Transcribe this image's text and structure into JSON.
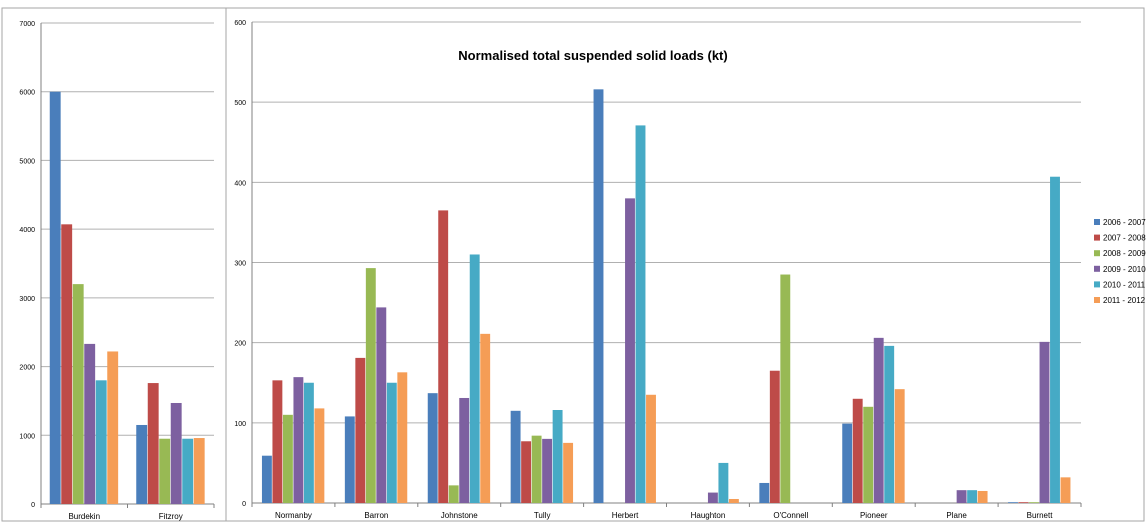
{
  "colors": [
    "#4a7ebb",
    "#be4b48",
    "#98b954",
    "#7d60a0",
    "#46aac5",
    "#f59d56"
  ],
  "chart_data": [
    {
      "type": "bar",
      "title": "",
      "categories": [
        "Burdekin",
        "Fitzroy"
      ],
      "ylim": [
        0,
        7000
      ],
      "yticks": [
        0,
        1000,
        2000,
        3000,
        4000,
        5000,
        6000,
        7000
      ],
      "grid": true,
      "series": [
        {
          "name": "2006 - 2007",
          "values": [
            6000,
            1150
          ]
        },
        {
          "name": "2007 - 2008",
          "values": [
            4070,
            1760
          ]
        },
        {
          "name": "2008 - 2009",
          "values": [
            3200,
            950
          ]
        },
        {
          "name": "2009 - 2010",
          "values": [
            2330,
            1470
          ]
        },
        {
          "name": "2010 - 2011",
          "values": [
            1800,
            950
          ]
        },
        {
          "name": "2011 - 2012",
          "values": [
            2220,
            960
          ]
        }
      ]
    },
    {
      "type": "bar",
      "title": "Normalised total suspended solid loads (kt)",
      "categories": [
        "Normanby",
        "Barron",
        "Johnstone",
        "Tully",
        "Herbert",
        "Haughton",
        "O'Connell",
        "Pioneer",
        "Plane",
        "Burnett"
      ],
      "ylim": [
        0,
        600
      ],
      "yticks": [
        0,
        100,
        200,
        300,
        400,
        500,
        600
      ],
      "grid": true,
      "legend_position": "right",
      "series": [
        {
          "name": "2006 - 2007",
          "values": [
            59,
            108,
            137,
            115,
            516,
            0,
            25,
            99,
            0,
            1
          ]
        },
        {
          "name": "2007 - 2008",
          "values": [
            153,
            181,
            365,
            77,
            0,
            0,
            165,
            130,
            0,
            1
          ]
        },
        {
          "name": "2008 - 2009",
          "values": [
            110,
            293,
            22,
            84,
            0,
            0,
            285,
            120,
            0,
            1
          ]
        },
        {
          "name": "2009 - 2010",
          "values": [
            157,
            244,
            131,
            80,
            380,
            13,
            0,
            206,
            16,
            201
          ]
        },
        {
          "name": "2010 - 2011",
          "values": [
            150,
            150,
            310,
            116,
            471,
            50,
            0,
            196,
            16,
            407
          ]
        },
        {
          "name": "2011 - 2012",
          "values": [
            118,
            163,
            211,
            75,
            135,
            5,
            0,
            142,
            15,
            32
          ]
        }
      ]
    }
  ],
  "legend": {
    "items": [
      "2006 - 2007",
      "2007 - 2008",
      "2008 - 2009",
      "2009 - 2010",
      "2010 - 2011",
      "2011 - 2012"
    ]
  }
}
